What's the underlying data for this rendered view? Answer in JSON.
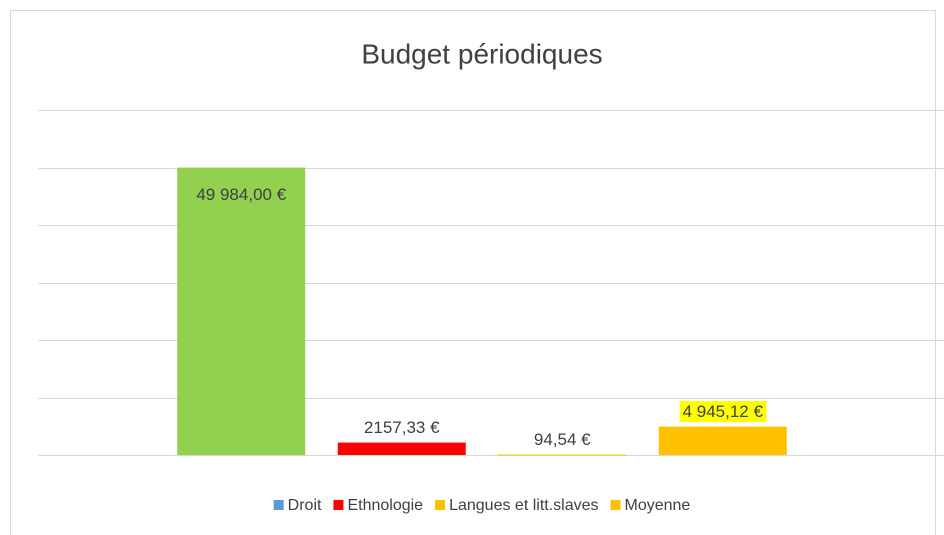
{
  "chart_data": {
    "type": "bar",
    "title": "Budget périodiques",
    "values": [
      49984,
      2157.33,
      94.54,
      4945.12
    ],
    "value_labels": [
      "49 984,00 €",
      "2157,33 €",
      "94,54 €",
      "4 945,12 €"
    ],
    "colors": [
      "#92d050",
      "#ff0000",
      "#ffc000",
      "#ffc000"
    ],
    "legend": [
      {
        "name": "Droit",
        "color": "#5b9bd5"
      },
      {
        "name": "Ethnologie",
        "color": "#ff0000"
      },
      {
        "name": "Langues et litt.slaves",
        "color": "#ffc000"
      },
      {
        "name": "Moyenne",
        "color": "#ffc000"
      }
    ],
    "ylim": [
      0,
      60000
    ],
    "yticks": [
      0,
      10000,
      20000,
      30000,
      40000,
      50000,
      60000
    ],
    "grid": true
  }
}
